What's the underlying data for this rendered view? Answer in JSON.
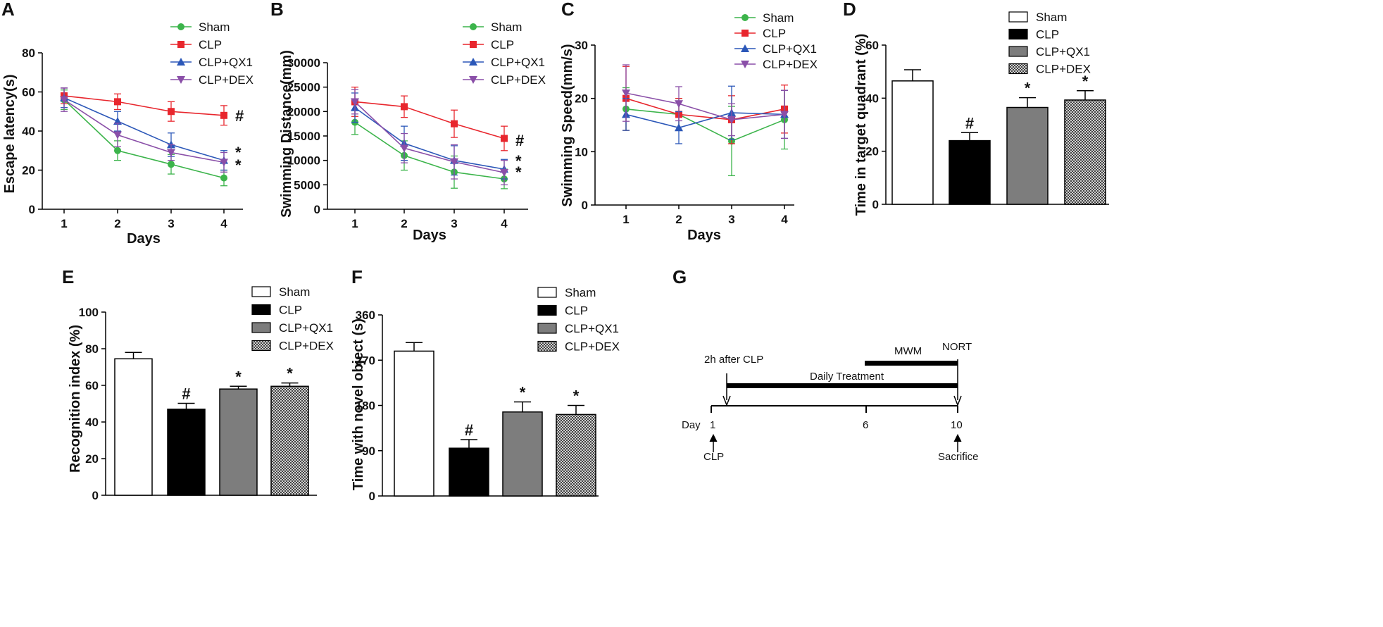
{
  "figure": {
    "panel_letters": [
      "A",
      "B",
      "C",
      "D",
      "E",
      "F",
      "G"
    ]
  },
  "groups": [
    "Sham",
    "CLP",
    "CLP+QX1",
    "CLP+DEX"
  ],
  "colors": {
    "Sham": "#3cb44b",
    "CLP": "#e8262d",
    "CLP+QX1": "#2b57b8",
    "CLP+DEX": "#8a4fa8",
    "bar_sham": "#ffffff",
    "bar_clp": "#000000",
    "bar_qx1": "#7d7d7d",
    "bar_dex": "#9a9a9a"
  },
  "chart_data": [
    {
      "panel": "A",
      "type": "line",
      "x": [
        1,
        2,
        3,
        4
      ],
      "xticks": [
        "1",
        "2",
        "3",
        "4"
      ],
      "yticks": [
        "0",
        "20",
        "40",
        "60",
        "80"
      ],
      "ylim": [
        0,
        80
      ],
      "xlabel": "Days",
      "ylabel": "Escape latency(s)",
      "series": [
        {
          "name": "Sham",
          "values": [
            56,
            30,
            23,
            16
          ],
          "errors": [
            5,
            5,
            5,
            4
          ],
          "marker": "circle"
        },
        {
          "name": "CLP",
          "values": [
            58,
            55,
            50,
            48
          ],
          "errors": [
            4,
            4,
            5,
            5
          ],
          "marker": "square"
        },
        {
          "name": "CLP+QX1",
          "values": [
            57,
            45,
            33,
            25
          ],
          "errors": [
            5,
            5,
            6,
            5
          ],
          "marker": "triangle-up"
        },
        {
          "name": "CLP+DEX",
          "values": [
            56,
            38,
            29,
            24
          ],
          "errors": [
            6,
            6,
            4,
            5
          ],
          "marker": "triangle-down"
        }
      ],
      "annotations": [
        "#",
        "*",
        "*"
      ]
    },
    {
      "panel": "B",
      "type": "line",
      "x": [
        1,
        2,
        3,
        4
      ],
      "xticks": [
        "1",
        "2",
        "3",
        "4"
      ],
      "yticks": [
        "0",
        "5000",
        "10000",
        "15000",
        "20000",
        "25000",
        "30000"
      ],
      "ylim": [
        0,
        30000
      ],
      "xlabel": "Days",
      "ylabel": "Swimming Distance(mm)",
      "series": [
        {
          "name": "Sham",
          "values": [
            17800,
            11000,
            7600,
            6200
          ],
          "errors": [
            2500,
            3000,
            3300,
            2000
          ],
          "marker": "circle"
        },
        {
          "name": "CLP",
          "values": [
            22000,
            21000,
            17500,
            14500
          ],
          "errors": [
            3000,
            2200,
            2800,
            2500
          ],
          "marker": "square"
        },
        {
          "name": "CLP+QX1",
          "values": [
            20800,
            13500,
            10000,
            8200
          ],
          "errors": [
            3000,
            3500,
            3000,
            2000
          ],
          "marker": "triangle-up"
        },
        {
          "name": "CLP+DEX",
          "values": [
            22000,
            12500,
            9700,
            7500
          ],
          "errors": [
            2500,
            3000,
            3500,
            2500
          ],
          "marker": "triangle-down"
        }
      ],
      "annotations": [
        "#",
        "*",
        "*"
      ]
    },
    {
      "panel": "C",
      "type": "line",
      "x": [
        1,
        2,
        3,
        4
      ],
      "xticks": [
        "1",
        "2",
        "3",
        "4"
      ],
      "yticks": [
        "0",
        "10",
        "20",
        "30"
      ],
      "ylim": [
        0,
        30
      ],
      "xlabel": "Days",
      "ylabel": "Swimming Speed(mm/s)",
      "series": [
        {
          "name": "Sham",
          "values": [
            18,
            17,
            12,
            16
          ],
          "errors": [
            4,
            3,
            6.5,
            5.5
          ],
          "marker": "circle"
        },
        {
          "name": "CLP",
          "values": [
            20,
            17,
            16,
            18
          ],
          "errors": [
            6,
            3,
            4.5,
            4.5
          ],
          "marker": "square"
        },
        {
          "name": "CLP+QX1",
          "values": [
            17,
            14.5,
            17.3,
            17
          ],
          "errors": [
            3,
            3,
            5,
            4.5
          ],
          "marker": "triangle-up"
        },
        {
          "name": "CLP+DEX",
          "values": [
            21,
            19,
            16,
            17
          ],
          "errors": [
            5.3,
            3.2,
            3,
            4.5
          ],
          "marker": "triangle-down"
        }
      ],
      "annotations": []
    },
    {
      "panel": "D",
      "type": "bar",
      "categories": [
        "Sham",
        "CLP",
        "CLP+QX1",
        "CLP+DEX"
      ],
      "values": [
        46.5,
        24,
        36.5,
        39.3
      ],
      "errors": [
        4.2,
        3,
        3.7,
        3.5
      ],
      "annotations": [
        "",
        "#",
        "*",
        "*"
      ],
      "yticks": [
        "0",
        "20",
        "40",
        "60"
      ],
      "ylim": [
        0,
        60
      ],
      "ylabel": "Time in target quadrant (%)"
    },
    {
      "panel": "E",
      "type": "bar",
      "categories": [
        "Sham",
        "CLP",
        "CLP+QX1",
        "CLP+DEX"
      ],
      "values": [
        74.5,
        47,
        58,
        59.5
      ],
      "errors": [
        3.5,
        3.2,
        1.5,
        1.8
      ],
      "annotations": [
        "",
        "#",
        "*",
        "*"
      ],
      "yticks": [
        "0",
        "20",
        "40",
        "60",
        "80",
        "100"
      ],
      "ylim": [
        0,
        100
      ],
      "ylabel": "Recognition index (%)"
    },
    {
      "panel": "F",
      "type": "bar",
      "categories": [
        "Sham",
        "CLP",
        "CLP+QX1",
        "CLP+DEX"
      ],
      "values": [
        288,
        95,
        167,
        162
      ],
      "errors": [
        17,
        17,
        20,
        18
      ],
      "annotations": [
        "",
        "#",
        "*",
        "*"
      ],
      "yticks": [
        "0",
        "90",
        "180",
        "270",
        "360"
      ],
      "ylim": [
        0,
        360
      ],
      "ylabel": "Time with novel object (s)"
    }
  ],
  "timeline": {
    "label_2h": "2h after CLP",
    "label_mwm": "MWM",
    "label_nort": "NORT",
    "label_daily": "Daily Treatment",
    "day_label": "Day",
    "day_1": "1",
    "day_6": "6",
    "day_10": "10",
    "label_clp": "CLP",
    "label_sacrifice": "Sacrifice"
  }
}
